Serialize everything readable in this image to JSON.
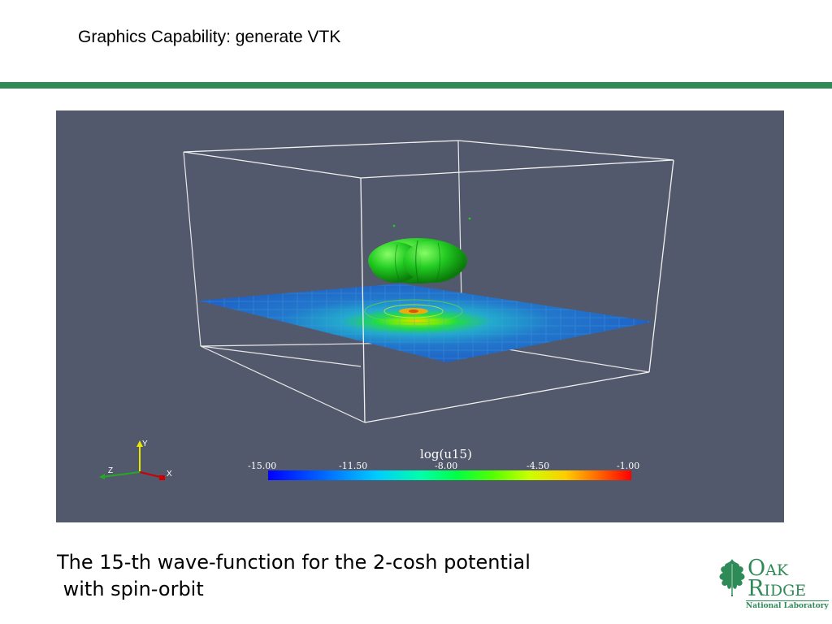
{
  "header": {
    "title": "Graphics Capability: generate VTK"
  },
  "viz": {
    "colorbar": {
      "title": "log(u15)",
      "ticks": [
        "-15.00",
        "-11.50",
        "-8.00",
        "-4.50",
        "-1.00"
      ]
    },
    "axes": {
      "x": "X",
      "y": "Y",
      "z": "Z"
    }
  },
  "caption": {
    "line1": "The 15-th wave-function for the 2-cosh potential",
    "line2": " with spin-orbit"
  },
  "logo": {
    "word1": "Oak",
    "word2": "Ridge",
    "sub": "National Laboratory"
  },
  "colors": {
    "rule": "#2e8b57",
    "viz_bg": "#53596c",
    "logo": "#2e8b57"
  }
}
